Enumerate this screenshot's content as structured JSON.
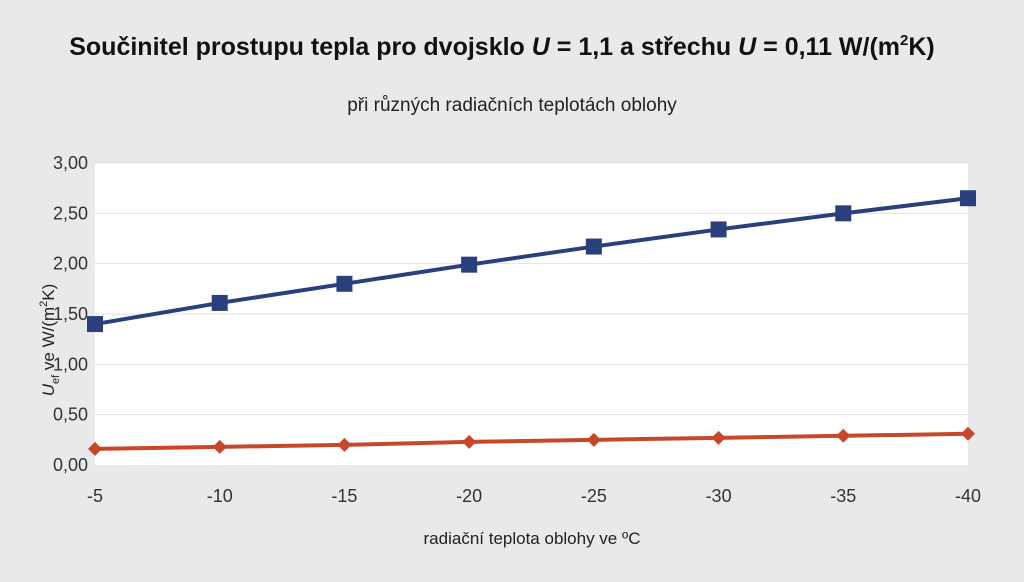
{
  "chart_data": {
    "type": "line",
    "title": {
      "pre": "Součinitel prostupu tepla pro dvojsklo ",
      "u1": "U",
      "mid1": " = 1,1 a střechu ",
      "u2": "U",
      "mid2": " = 0,11 W/(m",
      "sup": "2",
      "post": "K)"
    },
    "subtitle": "při různých radiačních teplotách oblohy",
    "xlabel": "radiační teplota oblohy ve ºC",
    "ylabel": {
      "main": "U",
      "sub": "ef",
      "rest": " ve W/(m",
      "sup": "2",
      "end": "K)"
    },
    "categories": [
      "-5",
      "-10",
      "-15",
      "-20",
      "-25",
      "-30",
      "-35",
      "-40"
    ],
    "yticks": [
      "0,00",
      "0,50",
      "1,00",
      "1,50",
      "2,00",
      "2,50",
      "3,00"
    ],
    "ylim": [
      0,
      3
    ],
    "grid": true,
    "series": [
      {
        "color": "#2b3f7c",
        "marker": "square",
        "values": [
          1.4,
          1.61,
          1.8,
          1.99,
          2.17,
          2.34,
          2.5,
          2.65
        ]
      },
      {
        "color": "#c8472a",
        "marker": "diamond",
        "values": [
          0.16,
          0.18,
          0.2,
          0.23,
          0.25,
          0.27,
          0.29,
          0.31
        ]
      }
    ]
  }
}
